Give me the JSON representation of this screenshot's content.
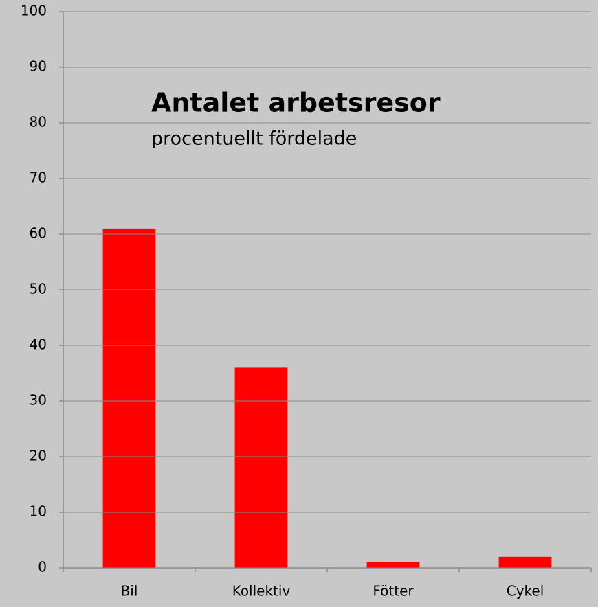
{
  "chart_data": {
    "type": "bar",
    "title": "Antalet arbetsresor",
    "subtitle": "procentuellt fördelade",
    "categories": [
      "Bil",
      "Kollektiv",
      "Fötter",
      "Cykel"
    ],
    "values": [
      61,
      36,
      1,
      2
    ],
    "color": "#ff0000",
    "ylim": [
      0,
      100
    ],
    "yticks": [
      0,
      10,
      20,
      30,
      40,
      50,
      60,
      70,
      80,
      90,
      100
    ],
    "grid": true
  }
}
